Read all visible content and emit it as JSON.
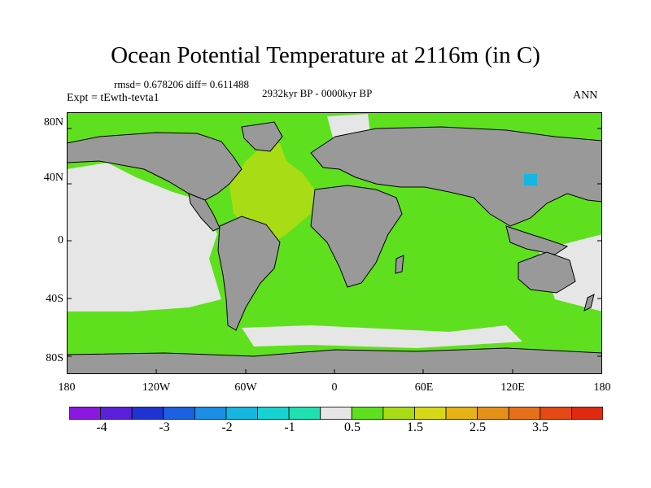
{
  "title": "Ocean Potential Temperature at 2116m (in C)",
  "stats_text": "rmsd= 0.678206 diff= 0.611488",
  "subtitle": "2932kyr BP - 0000kyr BP",
  "experiment": "Expt = tEwth-tevta1",
  "season": "ANN",
  "lat_ticks": [
    "80N",
    "40N",
    "0",
    "40S",
    "80S"
  ],
  "lon_ticks": [
    "180",
    "120W",
    "60W",
    "0",
    "60E",
    "120E",
    "180"
  ],
  "colorbar": {
    "colors": [
      "#8b18e0",
      "#5a1fd9",
      "#2033d2",
      "#1a60e0",
      "#1a8fe5",
      "#15b6e0",
      "#15d3d0",
      "#1fe0b0",
      "#e6e6e6",
      "#5ee01e",
      "#a8dc14",
      "#d7d914",
      "#e6b214",
      "#e6901a",
      "#e6701a",
      "#e64a14",
      "#e02a10"
    ],
    "labels": [
      "-4",
      "-3",
      "-2",
      "-1",
      "0.5",
      "1.5",
      "2.5",
      "3.5"
    ]
  },
  "map_colors": {
    "land": "#999999",
    "warm_anomaly": "#5ee01e",
    "near_zero": "#e6e6e6",
    "atlantic_anomaly": "#a8dc14",
    "cold_spot": "#15b6e0",
    "coastline": "#000000"
  }
}
